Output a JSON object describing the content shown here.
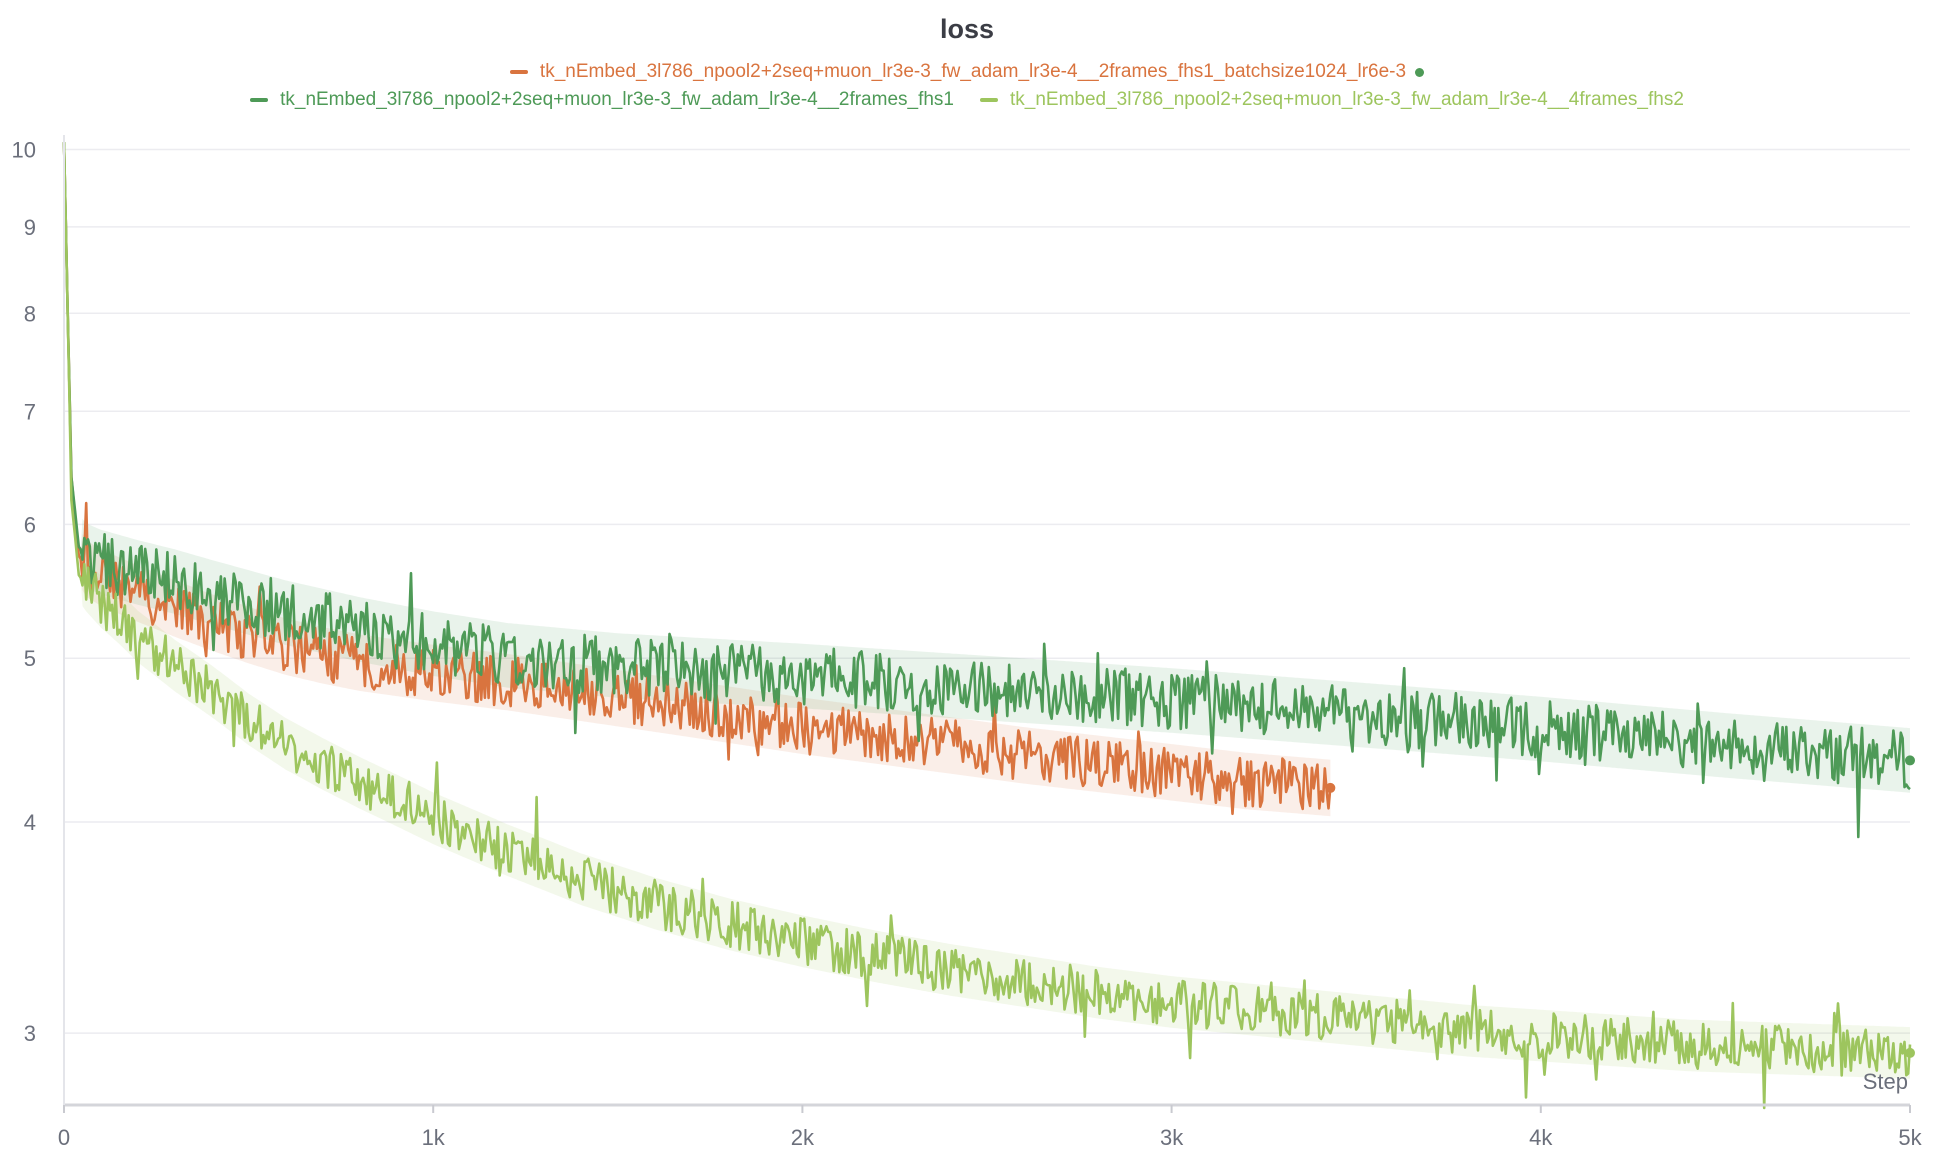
{
  "chart_data": {
    "type": "line",
    "title": "loss",
    "xlabel": "Step",
    "ylabel": "",
    "yscale": "log",
    "xlim": [
      0,
      5000
    ],
    "ylim": [
      2.72,
      10.2
    ],
    "x_ticks": [
      {
        "value": 0,
        "label": "0"
      },
      {
        "value": 1000,
        "label": "1k"
      },
      {
        "value": 2000,
        "label": "2k"
      },
      {
        "value": 3000,
        "label": "3k"
      },
      {
        "value": 4000,
        "label": "4k"
      },
      {
        "value": 5000,
        "label": "5k"
      }
    ],
    "y_ticks": [
      {
        "value": 3,
        "label": "3"
      },
      {
        "value": 4,
        "label": "4"
      },
      {
        "value": 5,
        "label": "5"
      },
      {
        "value": 6,
        "label": "6"
      },
      {
        "value": 7,
        "label": "7"
      },
      {
        "value": 8,
        "label": "8"
      },
      {
        "value": 9,
        "label": "9"
      },
      {
        "value": 10,
        "label": "10"
      }
    ],
    "grid": true,
    "legend_position": "top",
    "series": [
      {
        "name": "tk_nEmbed_3l786_npool2+2seq+muon_lr3e-3_fw_adam_lr3e-4__2frames_fhs1_batchsize1024_lr6e-3",
        "color": "#d9743f",
        "x": [
          0,
          10,
          20,
          40,
          60,
          100,
          150,
          200,
          300,
          400,
          500,
          600,
          700,
          800,
          1000,
          1200,
          1400,
          1600,
          1800,
          2000,
          2200,
          2400,
          2600,
          2800,
          3000,
          3200,
          3430
        ],
        "y": [
          10.1,
          8.0,
          6.4,
          5.75,
          5.65,
          5.58,
          5.52,
          5.46,
          5.35,
          5.25,
          5.16,
          5.08,
          5.02,
          4.97,
          4.9,
          4.84,
          4.77,
          4.7,
          4.63,
          4.56,
          4.5,
          4.44,
          4.38,
          4.33,
          4.28,
          4.23,
          4.19
        ],
        "noise": 0.035,
        "end_marker": true
      },
      {
        "name": "tk_nEmbed_3l786_npool2+2seq+muon_lr3e-3_fw_adam_lr3e-4__2frames_fhs1",
        "color": "#4e9a57",
        "x": [
          0,
          10,
          20,
          40,
          60,
          100,
          150,
          200,
          300,
          400,
          600,
          800,
          1000,
          1200,
          1500,
          2000,
          2500,
          3000,
          3500,
          4000,
          4500,
          5000
        ],
        "y": [
          10.1,
          8.0,
          6.4,
          5.82,
          5.75,
          5.7,
          5.66,
          5.62,
          5.55,
          5.47,
          5.32,
          5.2,
          5.1,
          5.02,
          4.95,
          4.88,
          4.8,
          4.72,
          4.63,
          4.54,
          4.44,
          4.35
        ],
        "noise": 0.04,
        "end_marker": true
      },
      {
        "name": "tk_nEmbed_3l786_npool2+2seq+muon_lr3e-3_fw_adam_lr3e-4__4frames_fhs2",
        "color": "#9dc55e",
        "x": [
          0,
          10,
          20,
          40,
          60,
          100,
          150,
          200,
          300,
          400,
          500,
          600,
          700,
          800,
          900,
          1000,
          1200,
          1400,
          1600,
          1800,
          2000,
          2200,
          2400,
          2600,
          2800,
          3000,
          3200,
          3400,
          3600,
          3800,
          4000,
          4200,
          4400,
          4600,
          4800,
          5000
        ],
        "y": [
          10.1,
          8.0,
          6.2,
          5.6,
          5.52,
          5.4,
          5.28,
          5.15,
          4.95,
          4.78,
          4.6,
          4.45,
          4.33,
          4.22,
          4.12,
          4.02,
          3.85,
          3.7,
          3.58,
          3.48,
          3.4,
          3.33,
          3.27,
          3.22,
          3.17,
          3.13,
          3.1,
          3.07,
          3.04,
          3.01,
          2.99,
          2.97,
          2.95,
          2.94,
          2.93,
          2.92
        ],
        "noise": 0.032,
        "end_marker": true
      }
    ]
  }
}
